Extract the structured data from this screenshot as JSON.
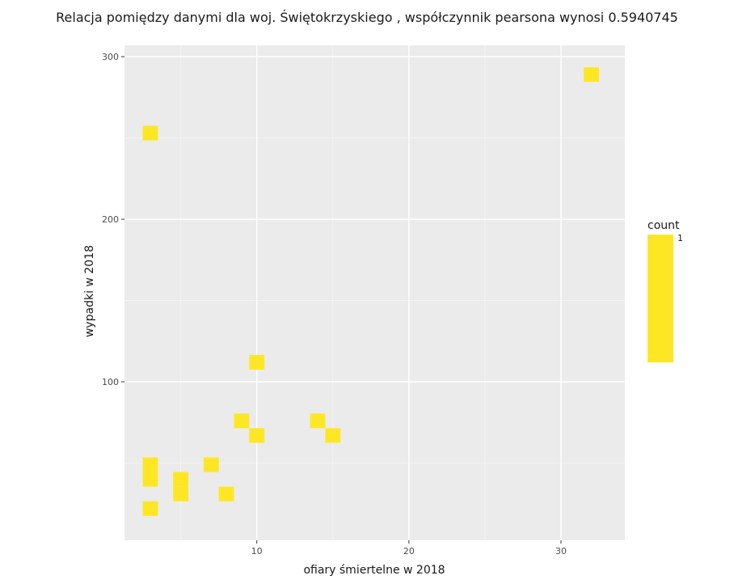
{
  "chart_data": {
    "type": "heatmap",
    "title": "Relacja pomiędzy danymi dla woj. Świętokrzyskiego , współczynnik pearsona wynosi  0.5940745",
    "xlabel": "ofiary śmiertelne w 2018",
    "ylabel": "wypadki w 2018",
    "xlim": [
      1.3,
      34.2
    ],
    "ylim": [
      2.5,
      307
    ],
    "x_ticks": [
      10,
      20,
      30
    ],
    "y_ticks": [
      100,
      200,
      300
    ],
    "bin_width": 1,
    "bin_height": 9,
    "grid": true,
    "cells": [
      {
        "x": 3,
        "y": 253,
        "count": 1
      },
      {
        "x": 32,
        "y": 289,
        "count": 1
      },
      {
        "x": 10,
        "y": 112,
        "count": 1
      },
      {
        "x": 9,
        "y": 76,
        "count": 1
      },
      {
        "x": 14,
        "y": 76,
        "count": 1
      },
      {
        "x": 10,
        "y": 67,
        "count": 1
      },
      {
        "x": 15,
        "y": 67,
        "count": 1
      },
      {
        "x": 3,
        "y": 49,
        "count": 1
      },
      {
        "x": 3,
        "y": 40,
        "count": 1
      },
      {
        "x": 7,
        "y": 49,
        "count": 1
      },
      {
        "x": 5,
        "y": 40,
        "count": 1
      },
      {
        "x": 5,
        "y": 31,
        "count": 1
      },
      {
        "x": 8,
        "y": 31,
        "count": 1
      },
      {
        "x": 3,
        "y": 22,
        "count": 1
      }
    ],
    "fill_color": "#fde725",
    "legend": {
      "title": "count",
      "labels": [
        "1"
      ],
      "placement": "right"
    }
  }
}
